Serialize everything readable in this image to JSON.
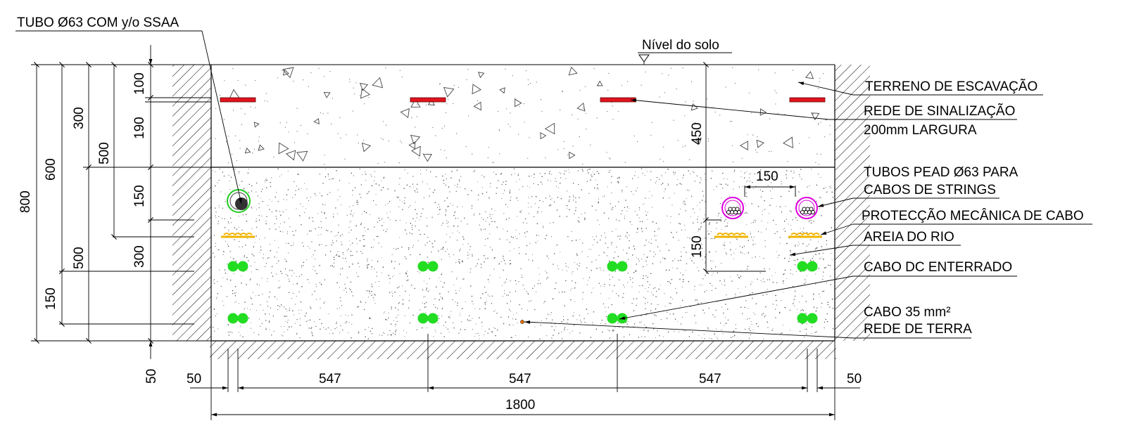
{
  "labels": {
    "tubo_ssaa": "TUBO Ø63 COM y/o SSAA",
    "nivel_solo": "Nível do solo",
    "terreno": "TERRENO DE ESCAVAÇÃO",
    "rede_sinalizacao": "REDE DE SINALIZAÇÃO",
    "largura": "200mm LARGURA",
    "tubos_pead_1": "TUBOS PEAD Ø63 PARA",
    "tubos_pead_2": "CABOS DE STRINGS",
    "proteccao": "PROTECÇÃO MECÂNICA DE CABO",
    "areia": "AREIA DO RIO",
    "cabo_dc": "CABO DC ENTERRADO",
    "cabo_35": "CABO 35 mm²",
    "rede_terra": "REDE DE TERRA"
  },
  "dimensions": {
    "left_100": "100",
    "left_190": "190",
    "left_150a": "150",
    "left_300a": "300",
    "left_50": "50",
    "left_300b": "300",
    "left_500a": "500",
    "left_600": "600",
    "left_500b": "500",
    "left_150b": "150",
    "left_800": "800",
    "right_450": "450",
    "right_150v": "150",
    "right_150h": "150",
    "bottom_50a": "50",
    "bottom_547a": "547",
    "bottom_547b": "547",
    "bottom_547c": "547",
    "bottom_50b": "50",
    "bottom_1800": "1800"
  },
  "colors": {
    "signal_tape": "#e0141e",
    "dc_cable": "#22dd22",
    "pead_tube": "#dd00dd",
    "ssaa_tube_ring": "#22cc22",
    "protection": "#f0b400",
    "earth_cable": "#e07000"
  }
}
